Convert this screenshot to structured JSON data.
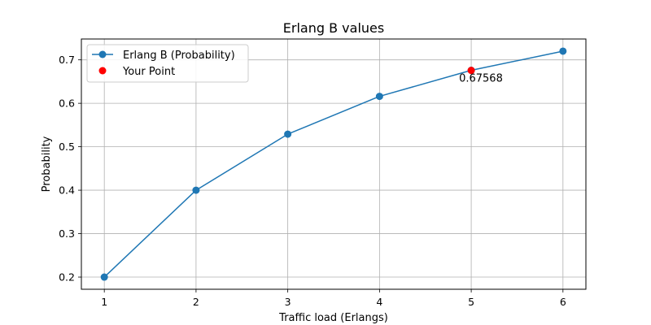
{
  "chart_data": {
    "type": "line",
    "title": "Erlang B values",
    "xlabel": "Traffic load (Erlangs)",
    "ylabel": "Probability",
    "xlim": [
      0.75,
      6.25
    ],
    "ylim": [
      0.172,
      0.748
    ],
    "x_ticks": [
      1,
      2,
      3,
      4,
      5,
      6
    ],
    "y_ticks": [
      0.2,
      0.3,
      0.4,
      0.5,
      0.6,
      0.7
    ],
    "x_tick_labels": [
      "1",
      "2",
      "3",
      "4",
      "5",
      "6"
    ],
    "y_tick_labels": [
      "0.2",
      "0.3",
      "0.4",
      "0.5",
      "0.6",
      "0.7"
    ],
    "grid": true,
    "legend_position": "top-left",
    "series": [
      {
        "name": "Erlang B (Probability)",
        "type": "line-marker",
        "color": "#1f77b4",
        "x": [
          1,
          2,
          3,
          4,
          5,
          6
        ],
        "y": [
          0.2,
          0.4,
          0.529,
          0.616,
          0.676,
          0.72
        ]
      },
      {
        "name": "Your Point",
        "type": "scatter",
        "color": "#ff0000",
        "x": [
          5
        ],
        "y": [
          0.67568
        ]
      }
    ],
    "annotations": [
      {
        "text": "0.67568",
        "x": 5,
        "y": 0.67568
      }
    ]
  }
}
